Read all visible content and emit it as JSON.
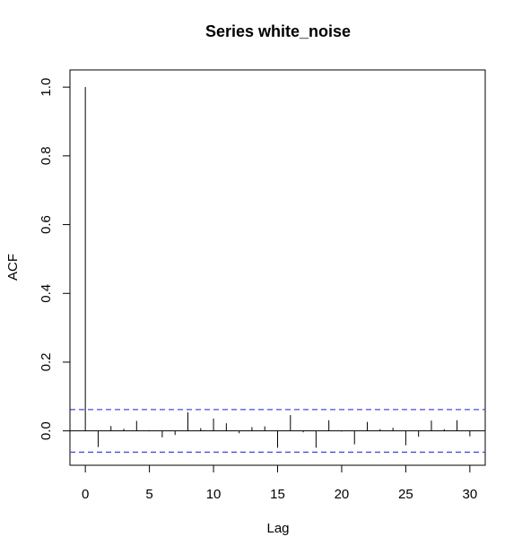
{
  "chart_data": {
    "type": "bar",
    "title": "Series  white_noise",
    "xlabel": "Lag",
    "ylabel": "ACF",
    "xlim": [
      -1.2,
      31.2
    ],
    "ylim": [
      -0.1,
      1.05
    ],
    "x_ticks": [
      0,
      5,
      10,
      15,
      20,
      25,
      30
    ],
    "y_ticks": [
      0.0,
      0.2,
      0.4,
      0.6,
      0.8,
      1.0
    ],
    "y_tick_labels": [
      "0.0",
      "0.2",
      "0.4",
      "0.6",
      "0.8",
      "1.0"
    ],
    "lags": [
      0,
      1,
      2,
      3,
      4,
      5,
      6,
      7,
      8,
      9,
      10,
      11,
      12,
      13,
      14,
      15,
      16,
      17,
      18,
      19,
      20,
      21,
      22,
      23,
      24,
      25,
      26,
      27,
      28,
      29,
      30
    ],
    "acf": [
      1.0,
      -0.047,
      0.014,
      0.006,
      0.029,
      0.002,
      -0.019,
      -0.012,
      0.054,
      0.008,
      0.036,
      0.022,
      -0.007,
      0.011,
      0.013,
      -0.049,
      0.046,
      -0.004,
      -0.049,
      0.031,
      -0.002,
      -0.039,
      0.026,
      0.005,
      0.009,
      -0.042,
      -0.017,
      0.03,
      0.005,
      0.031,
      -0.016
    ],
    "confidence_bound": 0.062,
    "confidence_color": "#4a4ae0",
    "grid": false
  }
}
